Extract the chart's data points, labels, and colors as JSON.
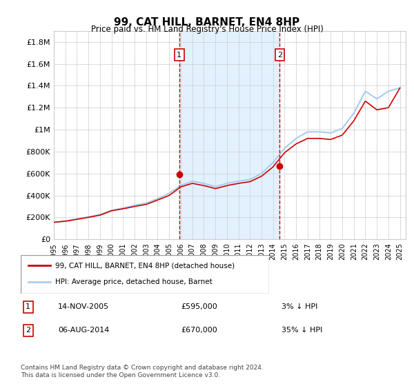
{
  "title": "99, CAT HILL, BARNET, EN4 8HP",
  "subtitle": "Price paid vs. HM Land Registry's House Price Index (HPI)",
  "ylabel_ticks": [
    "£0",
    "£200K",
    "£400K",
    "£600K",
    "£800K",
    "£1M",
    "£1.2M",
    "£1.4M",
    "£1.6M",
    "£1.8M"
  ],
  "ytick_values": [
    0,
    200000,
    400000,
    600000,
    800000,
    1000000,
    1200000,
    1400000,
    1600000,
    1800000
  ],
  "ylim": [
    0,
    1900000
  ],
  "xlim_start": 1995.0,
  "xlim_end": 2025.5,
  "years": [
    1995,
    1996,
    1997,
    1998,
    1999,
    2000,
    2001,
    2002,
    2003,
    2004,
    2005,
    2006,
    2007,
    2008,
    2009,
    2010,
    2011,
    2012,
    2013,
    2014,
    2015,
    2016,
    2017,
    2018,
    2019,
    2020,
    2021,
    2022,
    2023,
    2024,
    2025
  ],
  "hpi_values": [
    155000,
    165000,
    185000,
    205000,
    225000,
    265000,
    285000,
    310000,
    330000,
    370000,
    420000,
    490000,
    530000,
    510000,
    480000,
    510000,
    530000,
    545000,
    600000,
    700000,
    830000,
    920000,
    980000,
    980000,
    970000,
    1010000,
    1150000,
    1350000,
    1280000,
    1350000,
    1380000
  ],
  "property_values": [
    155000,
    165000,
    183000,
    200000,
    220000,
    260000,
    278000,
    300000,
    318000,
    358000,
    400000,
    478000,
    510000,
    490000,
    462000,
    490000,
    510000,
    525000,
    575000,
    660000,
    790000,
    870000,
    920000,
    920000,
    910000,
    950000,
    1080000,
    1260000,
    1180000,
    1200000,
    1380000
  ],
  "sale1_year": 2005.87,
  "sale1_price": 595000,
  "sale2_year": 2014.58,
  "sale2_price": 670000,
  "sale1_label": "1",
  "sale2_label": "2",
  "line_color_property": "#cc0000",
  "line_color_hpi": "#aaccee",
  "shaded_region_color": "#ddeeff",
  "dashed_line_color": "#cc0000",
  "marker_color": "#cc0000",
  "legend_line1": "99, CAT HILL, BARNET, EN4 8HP (detached house)",
  "legend_line2": "HPI: Average price, detached house, Barnet",
  "annotation1_date": "14-NOV-2005",
  "annotation1_price": "£595,000",
  "annotation1_hpi": "3% ↓ HPI",
  "annotation2_date": "06-AUG-2014",
  "annotation2_price": "£670,000",
  "annotation2_hpi": "35% ↓ HPI",
  "footnote": "Contains HM Land Registry data © Crown copyright and database right 2024.\nThis data is licensed under the Open Government Licence v3.0.",
  "background_color": "#ffffff",
  "plot_bg_color": "#ffffff",
  "grid_color": "#cccccc"
}
